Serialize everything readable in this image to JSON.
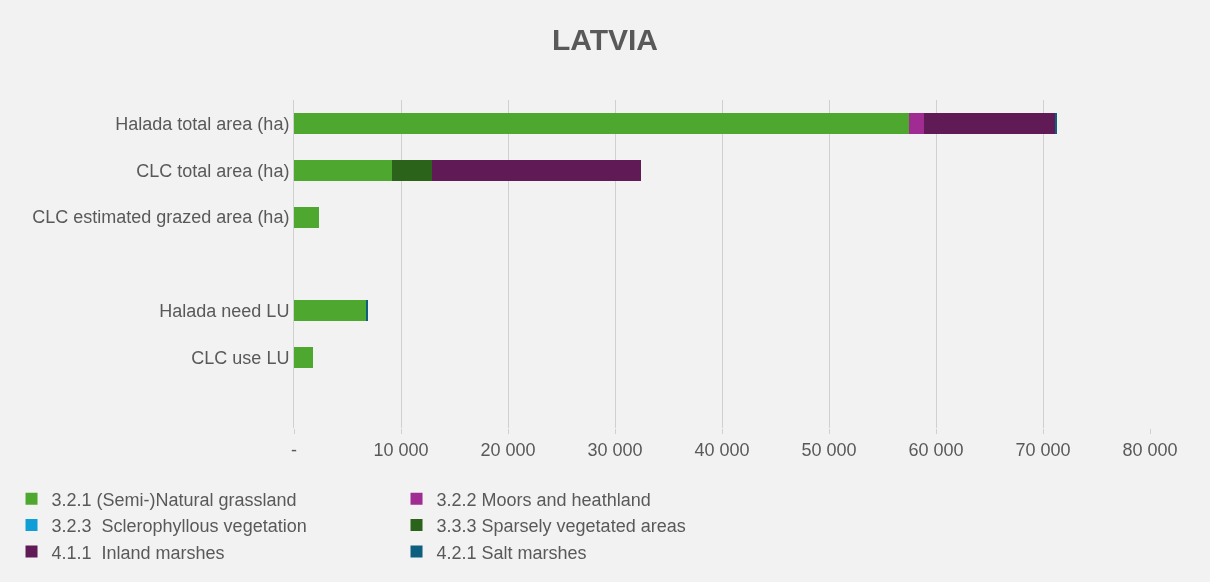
{
  "chart_data": {
    "type": "bar",
    "title": "LATVIA",
    "orientation": "horizontal",
    "stacked": true,
    "categories": [
      "Halada total area (ha)",
      "CLC total area (ha)",
      "CLC estimated grazed area (ha)",
      null,
      "Halada need LU",
      "CLC use LU",
      null
    ],
    "series": [
      {
        "name": "3.2.1 (Semi-)Natural grassland",
        "color": "#4ea72e",
        "values": [
          57500,
          9200,
          2300,
          null,
          6800,
          1800,
          null
        ]
      },
      {
        "name": "3.2.2 Moors and heathland",
        "color": "#a02b93",
        "values": [
          1400,
          null,
          null,
          null,
          null,
          null,
          null
        ]
      },
      {
        "name": "3.2.3  Sclerophyllous vegetation",
        "color": "#0f9ed5",
        "values": [
          null,
          null,
          null,
          null,
          null,
          null,
          null
        ]
      },
      {
        "name": "3.3.3 Sparsely vegetated areas",
        "color": "#2c631b",
        "values": [
          null,
          3700,
          null,
          null,
          null,
          null,
          null
        ]
      },
      {
        "name": "4.1.1  Inland marshes",
        "color": "#601a56",
        "values": [
          12200,
          19500,
          null,
          null,
          null,
          null,
          null
        ]
      },
      {
        "name": "4.2.1 Salt marshes",
        "color": "#0e5e7e",
        "values": [
          200,
          null,
          null,
          null,
          100,
          null,
          null
        ]
      }
    ],
    "xlim": [
      0,
      80000
    ],
    "xticks": [
      {
        "value": 0,
        "label": "-"
      },
      {
        "value": 10000,
        "label": "10 000"
      },
      {
        "value": 20000,
        "label": "20 000"
      },
      {
        "value": 30000,
        "label": "30 000"
      },
      {
        "value": 40000,
        "label": "40 000"
      },
      {
        "value": 50000,
        "label": "50 000"
      },
      {
        "value": 60000,
        "label": "60 000"
      },
      {
        "value": 70000,
        "label": "70 000"
      },
      {
        "value": 80000,
        "label": "80 000"
      }
    ],
    "grid": "x",
    "legend": "bottom"
  }
}
